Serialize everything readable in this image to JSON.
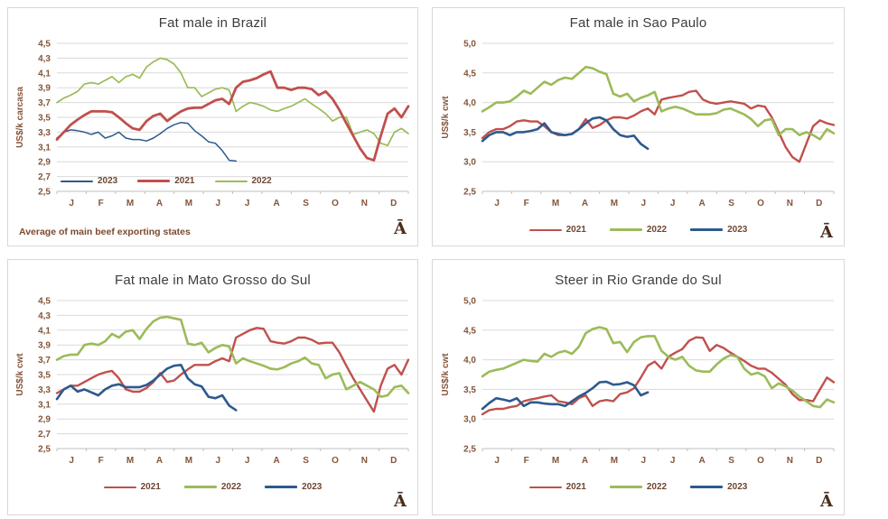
{
  "watermark": "Ā",
  "months": [
    "J",
    "F",
    "M",
    "A",
    "M",
    "J",
    "J",
    "A",
    "S",
    "O",
    "N",
    "D"
  ],
  "colors": {
    "red": "#c0504d",
    "green": "#9bbb59",
    "blue": "#2d5a8e",
    "gridline": "#d9d9d9",
    "axis_line": "#bfbfbf",
    "axis_text": "#84553a",
    "title_text": "#3d3d3d",
    "legend_text": "#6f4632",
    "panel_border": "#d8d8d8",
    "watermark_color": "#4a2d1b"
  },
  "chart_data": [
    {
      "type": "line",
      "title": "Fat male in Brazil",
      "ylabel": "US$/k carcasa",
      "ylim": [
        2.5,
        4.5
      ],
      "yticks": [
        "4,5",
        "4,3",
        "4,1",
        "3,9",
        "3,7",
        "3,5",
        "3,3",
        "3,1",
        "2,9",
        "2,7",
        "2,5"
      ],
      "grid": true,
      "points_per_year": 52,
      "legend_position": "inside-bottom-left",
      "legend_order": [
        "2023",
        "2021",
        "2022"
      ],
      "footnote": "Average  of main beef exporting states",
      "series": [
        {
          "name": "2022",
          "color_key": "green",
          "line_width": 1.7,
          "values": [
            3.7,
            3.76,
            3.8,
            3.85,
            3.95,
            3.97,
            3.95,
            4.0,
            4.05,
            3.97,
            4.05,
            4.08,
            4.03,
            4.18,
            4.25,
            4.3,
            4.28,
            4.22,
            4.1,
            3.9,
            3.9,
            3.78,
            3.83,
            3.88,
            3.9,
            3.87,
            3.58,
            3.65,
            3.7,
            3.68,
            3.65,
            3.6,
            3.58,
            3.62,
            3.65,
            3.7,
            3.75,
            3.68,
            3.62,
            3.55,
            3.45,
            3.5,
            3.5,
            3.27,
            3.3,
            3.33,
            3.28,
            3.15,
            3.12,
            3.3,
            3.35,
            3.28
          ]
        },
        {
          "name": "2023",
          "color_key": "blue",
          "line_width": 1.5,
          "values": [
            3.22,
            3.3,
            3.33,
            3.32,
            3.3,
            3.27,
            3.3,
            3.22,
            3.25,
            3.3,
            3.22,
            3.2,
            3.2,
            3.18,
            3.22,
            3.28,
            3.35,
            3.4,
            3.43,
            3.42,
            3.32,
            3.25,
            3.17,
            3.15,
            3.05,
            2.92,
            2.91
          ]
        },
        {
          "name": "2021",
          "color_key": "red",
          "line_width": 2.8,
          "values": [
            3.2,
            3.3,
            3.4,
            3.47,
            3.53,
            3.58,
            3.58,
            3.58,
            3.57,
            3.5,
            3.42,
            3.35,
            3.33,
            3.45,
            3.52,
            3.55,
            3.45,
            3.52,
            3.58,
            3.62,
            3.63,
            3.63,
            3.68,
            3.73,
            3.75,
            3.68,
            3.9,
            3.98,
            4.0,
            4.03,
            4.08,
            4.12,
            3.9,
            3.9,
            3.87,
            3.9,
            3.9,
            3.88,
            3.8,
            3.85,
            3.75,
            3.6,
            3.42,
            3.25,
            3.08,
            2.95,
            2.92,
            3.25,
            3.55,
            3.62,
            3.5,
            3.65
          ]
        }
      ]
    },
    {
      "type": "line",
      "title": "Fat male in Sao Paulo",
      "ylabel": "US$/k cwt",
      "ylim": [
        2.5,
        5.0
      ],
      "yticks": [
        "5,0",
        "4,5",
        "4,0",
        "3,5",
        "3,0",
        "2,5"
      ],
      "grid": true,
      "points_per_year": 52,
      "legend_position": "below",
      "legend_order": [
        "2021",
        "2022",
        "2023"
      ],
      "footnote": "",
      "series": [
        {
          "name": "2021",
          "color_key": "red",
          "line_width": 2.4,
          "values": [
            3.4,
            3.5,
            3.55,
            3.55,
            3.6,
            3.68,
            3.7,
            3.68,
            3.68,
            3.6,
            3.5,
            3.45,
            3.45,
            3.47,
            3.55,
            3.72,
            3.57,
            3.62,
            3.7,
            3.75,
            3.75,
            3.73,
            3.78,
            3.85,
            3.9,
            3.8,
            4.05,
            4.08,
            4.1,
            4.12,
            4.18,
            4.2,
            4.05,
            4.0,
            3.98,
            4.0,
            4.02,
            4.0,
            3.98,
            3.9,
            3.95,
            3.93,
            3.75,
            3.5,
            3.25,
            3.08,
            3.0,
            3.3,
            3.6,
            3.7,
            3.65,
            3.62
          ]
        },
        {
          "name": "2022",
          "color_key": "green",
          "line_width": 2.6,
          "values": [
            3.85,
            3.92,
            4.0,
            4.0,
            4.02,
            4.1,
            4.2,
            4.15,
            4.25,
            4.35,
            4.3,
            4.38,
            4.42,
            4.4,
            4.5,
            4.6,
            4.58,
            4.52,
            4.48,
            4.15,
            4.1,
            4.15,
            4.02,
            4.08,
            4.12,
            4.18,
            3.85,
            3.9,
            3.93,
            3.9,
            3.85,
            3.8,
            3.8,
            3.8,
            3.82,
            3.88,
            3.9,
            3.85,
            3.8,
            3.72,
            3.6,
            3.7,
            3.72,
            3.45,
            3.55,
            3.55,
            3.45,
            3.5,
            3.45,
            3.38,
            3.55,
            3.48
          ]
        },
        {
          "name": "2023",
          "color_key": "blue",
          "line_width": 2.6,
          "values": [
            3.35,
            3.45,
            3.5,
            3.5,
            3.45,
            3.5,
            3.5,
            3.52,
            3.55,
            3.65,
            3.5,
            3.47,
            3.45,
            3.47,
            3.55,
            3.65,
            3.73,
            3.75,
            3.7,
            3.55,
            3.45,
            3.42,
            3.44,
            3.3,
            3.22
          ]
        }
      ]
    },
    {
      "type": "line",
      "title": "Fat male in Mato Grosso do Sul",
      "ylabel": "US$/k cwt",
      "ylim": [
        2.5,
        4.5
      ],
      "yticks": [
        "4,5",
        "4,3",
        "4,1",
        "3,9",
        "3,7",
        "3,5",
        "3,3",
        "3,1",
        "2,9",
        "2,7",
        "2,5"
      ],
      "grid": true,
      "points_per_year": 52,
      "legend_position": "below",
      "legend_order": [
        "2021",
        "2022",
        "2023"
      ],
      "footnote": "",
      "series": [
        {
          "name": "2021",
          "color_key": "red",
          "line_width": 2.4,
          "values": [
            3.25,
            3.3,
            3.35,
            3.35,
            3.4,
            3.45,
            3.5,
            3.53,
            3.55,
            3.45,
            3.3,
            3.27,
            3.27,
            3.32,
            3.4,
            3.52,
            3.4,
            3.42,
            3.5,
            3.57,
            3.63,
            3.63,
            3.63,
            3.68,
            3.72,
            3.68,
            4.0,
            4.05,
            4.1,
            4.13,
            4.12,
            3.95,
            3.93,
            3.92,
            3.95,
            4.0,
            4.0,
            3.97,
            3.92,
            3.93,
            3.93,
            3.8,
            3.62,
            3.45,
            3.3,
            3.15,
            3.0,
            3.35,
            3.58,
            3.63,
            3.5,
            3.7
          ]
        },
        {
          "name": "2022",
          "color_key": "green",
          "line_width": 2.6,
          "values": [
            3.7,
            3.75,
            3.77,
            3.77,
            3.9,
            3.92,
            3.9,
            3.95,
            4.05,
            4.0,
            4.08,
            4.1,
            3.98,
            4.12,
            4.22,
            4.27,
            4.28,
            4.26,
            4.24,
            3.92,
            3.9,
            3.93,
            3.8,
            3.86,
            3.9,
            3.88,
            3.65,
            3.72,
            3.68,
            3.65,
            3.62,
            3.58,
            3.57,
            3.6,
            3.65,
            3.68,
            3.73,
            3.65,
            3.63,
            3.45,
            3.5,
            3.52,
            3.3,
            3.35,
            3.4,
            3.35,
            3.3,
            3.2,
            3.22,
            3.33,
            3.35,
            3.25
          ]
        },
        {
          "name": "2023",
          "color_key": "blue",
          "line_width": 2.6,
          "values": [
            3.17,
            3.3,
            3.35,
            3.27,
            3.3,
            3.26,
            3.22,
            3.3,
            3.35,
            3.37,
            3.33,
            3.33,
            3.33,
            3.36,
            3.42,
            3.5,
            3.58,
            3.62,
            3.63,
            3.45,
            3.37,
            3.34,
            3.2,
            3.18,
            3.22,
            3.08,
            3.02
          ]
        }
      ]
    },
    {
      "type": "line",
      "title": "Steer  in Rio Grande do Sul",
      "ylabel": "US$/k cwt",
      "ylim": [
        2.5,
        5.0
      ],
      "yticks": [
        "5,0",
        "4,5",
        "4,0",
        "3,5",
        "3,0",
        "2,5"
      ],
      "grid": true,
      "points_per_year": 52,
      "legend_position": "below",
      "legend_order": [
        "2021",
        "2022",
        "2023"
      ],
      "footnote": "",
      "series": [
        {
          "name": "2021",
          "color_key": "red",
          "line_width": 2.4,
          "values": [
            3.08,
            3.15,
            3.17,
            3.17,
            3.2,
            3.22,
            3.3,
            3.33,
            3.35,
            3.38,
            3.4,
            3.3,
            3.28,
            3.25,
            3.35,
            3.4,
            3.22,
            3.3,
            3.32,
            3.3,
            3.42,
            3.45,
            3.52,
            3.7,
            3.9,
            3.97,
            3.85,
            4.05,
            4.12,
            4.18,
            4.32,
            4.38,
            4.37,
            4.15,
            4.25,
            4.2,
            4.12,
            4.05,
            3.98,
            3.9,
            3.85,
            3.85,
            3.78,
            3.68,
            3.58,
            3.42,
            3.32,
            3.32,
            3.3,
            3.5,
            3.7,
            3.62
          ]
        },
        {
          "name": "2022",
          "color_key": "green",
          "line_width": 2.6,
          "values": [
            3.72,
            3.8,
            3.83,
            3.85,
            3.9,
            3.95,
            4.0,
            3.98,
            3.97,
            4.1,
            4.05,
            4.12,
            4.15,
            4.1,
            4.22,
            4.45,
            4.52,
            4.55,
            4.52,
            4.28,
            4.3,
            4.13,
            4.3,
            4.38,
            4.4,
            4.4,
            4.15,
            4.05,
            4.0,
            4.05,
            3.9,
            3.82,
            3.8,
            3.8,
            3.92,
            4.02,
            4.08,
            4.05,
            3.85,
            3.75,
            3.78,
            3.72,
            3.52,
            3.6,
            3.55,
            3.48,
            3.38,
            3.3,
            3.22,
            3.2,
            3.33,
            3.28
          ]
        },
        {
          "name": "2023",
          "color_key": "blue",
          "line_width": 2.6,
          "values": [
            3.17,
            3.27,
            3.35,
            3.33,
            3.3,
            3.35,
            3.22,
            3.28,
            3.28,
            3.26,
            3.25,
            3.25,
            3.22,
            3.3,
            3.38,
            3.44,
            3.52,
            3.62,
            3.63,
            3.58,
            3.59,
            3.62,
            3.57,
            3.4,
            3.45
          ]
        }
      ]
    }
  ]
}
